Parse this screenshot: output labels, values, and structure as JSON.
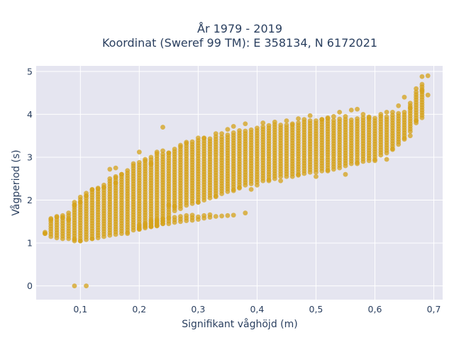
{
  "chart_data": {
    "type": "scatter",
    "title": "År 1979 - 2019",
    "subtitle": "Koordinat (Sweref 99 TM): E 358134, N 6172021",
    "xlabel": "Signifikant våghöjd (m)",
    "ylabel": "Vågperiod (s)",
    "xlim": [
      0.025,
      0.715
    ],
    "ylim": [
      -0.32,
      5.13
    ],
    "xticks": [
      0.1,
      0.2,
      0.3,
      0.4,
      0.5,
      0.6,
      0.7
    ],
    "xtick_labels": [
      "0,1",
      "0,2",
      "0,3",
      "0,4",
      "0,5",
      "0,6",
      "0,7"
    ],
    "yticks": [
      0,
      1,
      2,
      3,
      4,
      5
    ],
    "ytick_labels": [
      "0",
      "1",
      "2",
      "3",
      "4",
      "5"
    ],
    "grid": true,
    "colors": {
      "marker": "#d4a21a",
      "plot_bg": "#e5e5f0",
      "grid": "#ffffff"
    },
    "series": [
      {
        "main_band": [
          [
            0.04,
            1.22,
            1.24
          ],
          [
            0.05,
            1.15,
            1.58
          ],
          [
            0.06,
            1.12,
            1.62
          ],
          [
            0.07,
            1.1,
            1.68
          ],
          [
            0.08,
            1.1,
            1.75
          ],
          [
            0.09,
            1.05,
            1.98
          ],
          [
            0.1,
            1.05,
            2.12
          ],
          [
            0.11,
            1.08,
            2.2
          ],
          [
            0.12,
            1.1,
            2.28
          ],
          [
            0.13,
            1.12,
            2.3
          ],
          [
            0.14,
            1.15,
            2.38
          ],
          [
            0.15,
            1.18,
            2.45
          ],
          [
            0.16,
            1.2,
            2.55
          ],
          [
            0.17,
            1.22,
            2.62
          ],
          [
            0.18,
            1.25,
            2.7
          ],
          [
            0.19,
            1.3,
            2.8
          ],
          [
            0.2,
            1.32,
            2.9
          ],
          [
            0.21,
            1.35,
            2.95
          ],
          [
            0.22,
            1.38,
            3.02
          ],
          [
            0.23,
            1.4,
            3.1
          ],
          [
            0.24,
            1.45,
            3.1
          ],
          [
            0.25,
            1.6,
            3.15
          ],
          [
            0.26,
            1.75,
            3.2
          ],
          [
            0.27,
            1.8,
            3.25
          ],
          [
            0.28,
            1.88,
            3.32
          ],
          [
            0.29,
            1.92,
            3.4
          ],
          [
            0.3,
            1.95,
            3.42
          ],
          [
            0.31,
            2.0,
            3.45
          ],
          [
            0.32,
            2.05,
            3.48
          ],
          [
            0.33,
            2.1,
            3.5
          ],
          [
            0.34,
            2.15,
            3.52
          ],
          [
            0.35,
            2.2,
            3.55
          ],
          [
            0.36,
            2.25,
            3.6
          ],
          [
            0.37,
            2.3,
            3.62
          ],
          [
            0.38,
            2.35,
            3.65
          ],
          [
            0.39,
            2.38,
            3.68
          ],
          [
            0.4,
            2.42,
            3.72
          ],
          [
            0.41,
            2.45,
            3.75
          ],
          [
            0.42,
            2.48,
            3.75
          ],
          [
            0.43,
            2.5,
            3.78
          ],
          [
            0.44,
            2.55,
            3.78
          ],
          [
            0.45,
            2.55,
            3.8
          ],
          [
            0.46,
            2.55,
            3.8
          ],
          [
            0.47,
            2.6,
            3.82
          ],
          [
            0.48,
            2.62,
            3.85
          ],
          [
            0.49,
            2.65,
            3.85
          ],
          [
            0.5,
            2.65,
            3.88
          ],
          [
            0.51,
            2.68,
            3.9
          ],
          [
            0.52,
            2.7,
            3.9
          ],
          [
            0.53,
            2.72,
            3.9
          ],
          [
            0.54,
            2.75,
            3.9
          ],
          [
            0.55,
            2.8,
            3.9
          ],
          [
            0.56,
            2.85,
            3.92
          ],
          [
            0.57,
            2.88,
            3.92
          ],
          [
            0.58,
            2.9,
            3.95
          ],
          [
            0.59,
            2.92,
            3.95
          ],
          [
            0.6,
            2.95,
            3.95
          ],
          [
            0.61,
            3.05,
            3.95
          ],
          [
            0.62,
            3.1,
            3.97
          ],
          [
            0.63,
            3.2,
            4.0
          ],
          [
            0.64,
            3.3,
            4.05
          ],
          [
            0.65,
            3.45,
            4.1
          ],
          [
            0.66,
            3.6,
            4.3
          ],
          [
            0.67,
            3.8,
            4.55
          ],
          [
            0.68,
            3.92,
            4.7
          ]
        ],
        "lower_branch": [
          [
            0.2,
            1.35,
            1.42
          ],
          [
            0.21,
            1.38,
            1.48
          ],
          [
            0.22,
            1.4,
            1.52
          ],
          [
            0.23,
            1.42,
            1.55
          ],
          [
            0.24,
            1.45,
            1.58
          ],
          [
            0.25,
            1.45,
            1.62
          ],
          [
            0.26,
            1.48,
            1.65
          ],
          [
            0.27,
            1.5,
            1.65
          ],
          [
            0.28,
            1.52,
            1.65
          ],
          [
            0.29,
            1.53,
            1.66
          ],
          [
            0.3,
            1.55,
            1.65
          ],
          [
            0.31,
            1.58,
            1.66
          ],
          [
            0.32,
            1.6,
            1.66
          ],
          [
            0.33,
            1.62,
            1.66
          ],
          [
            0.34,
            1.63,
            1.66
          ],
          [
            0.35,
            1.64,
            1.66
          ],
          [
            0.36,
            1.65,
            1.67
          ]
        ],
        "points": [
          [
            0.09,
            0.0
          ],
          [
            0.11,
            0.0
          ],
          [
            0.09,
            1.88
          ],
          [
            0.1,
            1.95
          ],
          [
            0.13,
            2.28
          ],
          [
            0.15,
            2.5
          ],
          [
            0.16,
            2.55
          ],
          [
            0.15,
            2.72
          ],
          [
            0.16,
            2.75
          ],
          [
            0.21,
            2.95
          ],
          [
            0.2,
            3.12
          ],
          [
            0.22,
            2.85
          ],
          [
            0.24,
            3.7
          ],
          [
            0.24,
            3.15
          ],
          [
            0.25,
            1.88
          ],
          [
            0.26,
            1.85
          ],
          [
            0.23,
            1.4
          ],
          [
            0.27,
            3.28
          ],
          [
            0.3,
            3.45
          ],
          [
            0.33,
            3.55
          ],
          [
            0.35,
            3.65
          ],
          [
            0.36,
            3.72
          ],
          [
            0.38,
            3.78
          ],
          [
            0.38,
            1.7
          ],
          [
            0.37,
            2.28
          ],
          [
            0.39,
            2.25
          ],
          [
            0.4,
            2.35
          ],
          [
            0.44,
            2.45
          ],
          [
            0.45,
            3.85
          ],
          [
            0.47,
            3.9
          ],
          [
            0.49,
            3.97
          ],
          [
            0.5,
            2.55
          ],
          [
            0.52,
            3.92
          ],
          [
            0.54,
            4.05
          ],
          [
            0.55,
            2.6
          ],
          [
            0.55,
            3.95
          ],
          [
            0.56,
            4.1
          ],
          [
            0.57,
            4.12
          ],
          [
            0.58,
            4.0
          ],
          [
            0.6,
            2.92
          ],
          [
            0.62,
            2.95
          ],
          [
            0.63,
            4.05
          ],
          [
            0.64,
            4.2
          ],
          [
            0.65,
            4.4
          ],
          [
            0.66,
            3.5
          ],
          [
            0.68,
            4.88
          ],
          [
            0.69,
            4.9
          ],
          [
            0.69,
            4.45
          ],
          [
            0.68,
            4.55
          ],
          [
            0.04,
            1.22
          ],
          [
            0.04,
            1.25
          ],
          [
            0.05,
            1.55
          ],
          [
            0.06,
            1.62
          ],
          [
            0.07,
            1.6
          ],
          [
            0.08,
            1.55
          ],
          [
            0.11,
            2.1
          ],
          [
            0.12,
            2.25
          ],
          [
            0.14,
            2.3
          ],
          [
            0.16,
            2.4
          ],
          [
            0.17,
            2.6
          ],
          [
            0.19,
            2.85
          ],
          [
            0.23,
            3.12
          ],
          [
            0.25,
            3.1
          ],
          [
            0.28,
            3.35
          ],
          [
            0.31,
            3.45
          ],
          [
            0.34,
            3.55
          ],
          [
            0.41,
            3.8
          ],
          [
            0.43,
            3.82
          ],
          [
            0.46,
            3.78
          ],
          [
            0.48,
            3.88
          ],
          [
            0.51,
            3.88
          ],
          [
            0.53,
            3.95
          ],
          [
            0.59,
            3.92
          ],
          [
            0.61,
            4.0
          ],
          [
            0.62,
            4.05
          ],
          [
            0.66,
            4.15
          ],
          [
            0.67,
            4.6
          ],
          [
            0.63,
            3.18
          ],
          [
            0.65,
            3.42
          ],
          [
            0.67,
            3.85
          ],
          [
            0.12,
            1.1
          ],
          [
            0.1,
            1.05
          ],
          [
            0.09,
            1.08
          ],
          [
            0.2,
            1.32
          ],
          [
            0.22,
            1.38
          ],
          [
            0.18,
            1.22
          ],
          [
            0.3,
            1.95
          ],
          [
            0.33,
            2.08
          ],
          [
            0.36,
            2.22
          ],
          [
            0.42,
            2.45
          ],
          [
            0.47,
            2.58
          ],
          [
            0.52,
            2.68
          ],
          [
            0.57,
            2.85
          ]
        ]
      }
    ]
  }
}
